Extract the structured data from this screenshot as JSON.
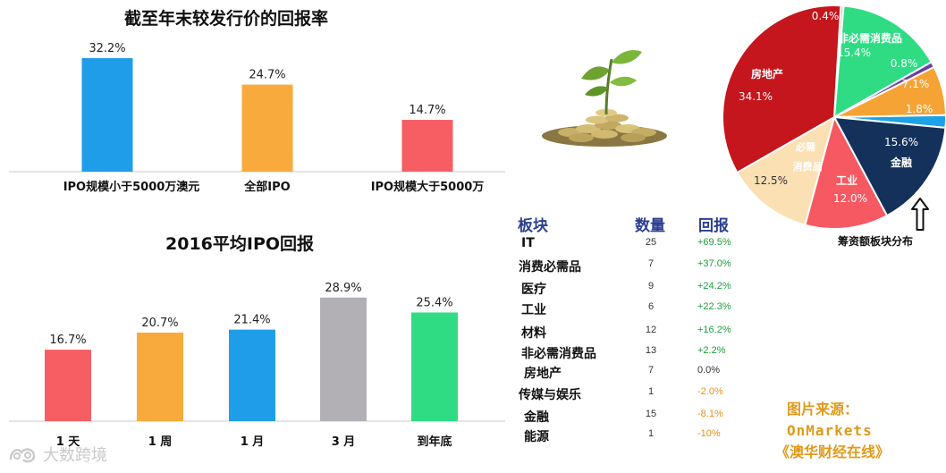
{
  "colors": {
    "red": "#f65e64",
    "orange": "#f8ab3c",
    "blue": "#209de8",
    "gray": "#b2b0b4",
    "green": "#2fdc84",
    "positive": "#1e9e3a",
    "negative": "#e8901a",
    "neutral": "#333333",
    "header": "#2b3f8f",
    "source": "#e09a1a"
  },
  "top_chart": {
    "title": "截至年末较发行价的回报率",
    "chart_data": {
      "type": "bar",
      "title": "截至年末较发行价的回报率",
      "categories": [
        "IPO规模小于5000万澳元",
        "全部IPO",
        "IPO规模大于5000万"
      ],
      "values": [
        32.2,
        24.7,
        14.7
      ],
      "value_labels": [
        "32.2%",
        "24.7%",
        "14.7%"
      ],
      "bar_colors": [
        "blue",
        "orange",
        "red"
      ],
      "ylim": [
        0,
        35
      ]
    }
  },
  "bottom_chart": {
    "title": "2016平均IPO回报",
    "chart_data": {
      "type": "bar",
      "title": "2016平均IPO回报",
      "categories": [
        "1 天",
        "1 周",
        "1 月",
        "3 月",
        "到年底"
      ],
      "values": [
        16.7,
        20.7,
        21.4,
        28.9,
        25.4
      ],
      "value_labels": [
        "16.7%",
        "20.7%",
        "21.4%",
        "28.9%",
        "25.4%"
      ],
      "bar_colors": [
        "red",
        "orange",
        "blue",
        "gray",
        "green"
      ],
      "ylim": [
        0,
        30
      ]
    }
  },
  "plant_icon": "plant-on-coins-icon",
  "sector_table": {
    "headers": {
      "sector": "板块",
      "count": "数量",
      "return": "回报"
    },
    "rows": [
      {
        "sector": "IT",
        "count": "25",
        "return": "+69.5%",
        "tone": "positive"
      },
      {
        "sector": "消费必需品",
        "count": "7",
        "return": "+37.0%",
        "tone": "positive"
      },
      {
        "sector": "医疗",
        "count": "9",
        "return": "+24.2%",
        "tone": "positive"
      },
      {
        "sector": "工业",
        "count": "6",
        "return": "+22.3%",
        "tone": "positive"
      },
      {
        "sector": "材料",
        "count": "12",
        "return": "+16.2%",
        "tone": "positive"
      },
      {
        "sector": "非必需消费品",
        "count": "13",
        "return": "+2.2%",
        "tone": "positive"
      },
      {
        "sector": "房地产",
        "count": "7",
        "return": "0.0%",
        "tone": "neutral"
      },
      {
        "sector": "传媒与娱乐",
        "count": "1",
        "return": "-2.0%",
        "tone": "negative"
      },
      {
        "sector": "金融",
        "count": "15",
        "return": "-8.1%",
        "tone": "negative"
      },
      {
        "sector": "能源",
        "count": "1",
        "return": "-10%",
        "tone": "negative"
      }
    ]
  },
  "pie_chart": {
    "caption": "筹资额板块分布",
    "arrow_icon": "up-arrow-icon",
    "chart_data": {
      "type": "pie",
      "slices": [
        {
          "name": "",
          "value": 0.4,
          "label": "0.4%",
          "color": "#ff9ea3"
        },
        {
          "name": "非必需消费品",
          "value": 15.4,
          "label": "15.4%",
          "color": "#2fdc84"
        },
        {
          "name": "",
          "value": 0.8,
          "label": "0.8%",
          "color": "#6b3fa0"
        },
        {
          "name": "",
          "value": 7.1,
          "label": "7.1%",
          "color": "#f6a335"
        },
        {
          "name": "",
          "value": 1.8,
          "label": "1.8%",
          "color": "#1ca2e6"
        },
        {
          "name": "金融",
          "value": 15.6,
          "label": "15.6%",
          "color": "#13315a"
        },
        {
          "name": "工业",
          "value": 12.0,
          "label": "12.0%",
          "color": "#f65962"
        },
        {
          "name": "必需消费品",
          "value": 12.5,
          "label": "12.5%",
          "color": "#fbe0b3"
        },
        {
          "name": "房地产",
          "value": 34.1,
          "label": "34.1%",
          "color": "#c4161c"
        }
      ]
    }
  },
  "source": {
    "line1": "图片来源：",
    "line2": "OnMarkets",
    "line3": "《澳华财经在线》"
  },
  "watermark": "大数跨境"
}
